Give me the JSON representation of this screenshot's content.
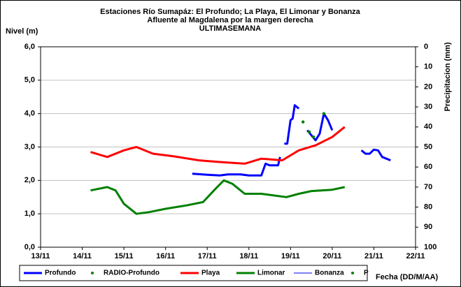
{
  "chart_data": {
    "type": "line",
    "title": "Estaciones Río Sumapáz: El Profundo; La Playa, El Limonar y Bonanza",
    "subtitle": "Afluente al Magdalena por la margen derecha",
    "subtitle2": "ULTIMASEMANA",
    "y_label": "Nivel (m)",
    "y2_label": "Precipitacion (mm)",
    "x_label": "Fecha (DD/M/AA)",
    "xlim": [
      13,
      22
    ],
    "xticks": [
      {
        "value": 13,
        "label": "13/11"
      },
      {
        "value": 14,
        "label": "14/11"
      },
      {
        "value": 15,
        "label": "15/11"
      },
      {
        "value": 16,
        "label": "16/11"
      },
      {
        "value": 17,
        "label": "17/11"
      },
      {
        "value": 18,
        "label": "18/11"
      },
      {
        "value": 19,
        "label": "19/11"
      },
      {
        "value": 20,
        "label": "20/11"
      },
      {
        "value": 21,
        "label": "21/11"
      },
      {
        "value": 22,
        "label": "22/11"
      }
    ],
    "ylim": [
      0,
      6
    ],
    "yticks": [
      {
        "value": 0,
        "label": "0,0"
      },
      {
        "value": 1,
        "label": "1,0"
      },
      {
        "value": 2,
        "label": "2,0"
      },
      {
        "value": 3,
        "label": "3,0"
      },
      {
        "value": 4,
        "label": "4,0"
      },
      {
        "value": 5,
        "label": "5,0"
      },
      {
        "value": 6,
        "label": "6,0"
      }
    ],
    "y2lim": [
      100,
      0
    ],
    "y2ticks": [
      0,
      10,
      20,
      30,
      40,
      50,
      60,
      70,
      80,
      90,
      100
    ],
    "grid": true,
    "series": [
      {
        "name": "Profundo",
        "color": "#0000ff",
        "width": 3,
        "marker": "line",
        "x": [
          16.64,
          17.0,
          17.3,
          17.5,
          17.8,
          18.0,
          18.3,
          18.4,
          18.5,
          18.7,
          18.75,
          18.8,
          18.85,
          18.92,
          19.0,
          19.05,
          19.1,
          19.2,
          19.25,
          19.4,
          19.6,
          19.7,
          19.8,
          19.9,
          20.0,
          20.4,
          20.7,
          20.8,
          20.9,
          21.0,
          21.1,
          21.2,
          21.4
        ],
        "values": [
          2.2,
          2.17,
          2.15,
          2.18,
          2.18,
          2.15,
          2.15,
          2.5,
          2.45,
          2.45,
          2.7,
          null,
          3.1,
          3.1,
          3.8,
          3.85,
          4.25,
          4.15,
          null,
          3.5,
          3.2,
          3.4,
          4.0,
          3.8,
          3.5,
          null,
          2.9,
          2.8,
          2.8,
          2.92,
          2.9,
          2.7,
          2.6
        ]
      },
      {
        "name": "RADIO-Profundo",
        "color": "#008000",
        "width": 3,
        "marker": "dot",
        "x": [
          19.3,
          19.45,
          19.55,
          19.8
        ],
        "values": [
          3.75,
          3.45,
          3.3,
          4.0
        ]
      },
      {
        "name": "Playa",
        "color": "#ff0000",
        "width": 3,
        "marker": "line",
        "x": [
          14.2,
          14.6,
          15.0,
          15.3,
          15.7,
          16.2,
          16.8,
          17.3,
          17.9,
          18.3,
          18.8,
          19.2,
          19.6,
          20.0,
          20.3
        ],
        "values": [
          2.85,
          2.7,
          2.9,
          3.0,
          2.8,
          2.72,
          2.6,
          2.55,
          2.5,
          2.65,
          2.6,
          2.9,
          3.05,
          3.3,
          3.6
        ]
      },
      {
        "name": "Limonar",
        "color": "#008000",
        "width": 3,
        "marker": "line",
        "x": [
          14.2,
          14.6,
          14.8,
          15.0,
          15.3,
          15.6,
          16.0,
          16.5,
          16.9,
          17.2,
          17.4,
          17.6,
          17.9,
          18.3,
          18.6,
          18.9,
          19.2,
          19.5,
          20.0,
          20.3
        ],
        "values": [
          1.7,
          1.8,
          1.7,
          1.3,
          1.0,
          1.05,
          1.15,
          1.25,
          1.35,
          1.75,
          2.0,
          1.9,
          1.6,
          1.6,
          1.55,
          1.5,
          1.6,
          1.68,
          1.72,
          1.8
        ]
      },
      {
        "name": "Bonanza",
        "color": "#0000ff",
        "width": 1,
        "marker": "line",
        "x": [],
        "values": []
      },
      {
        "name": "P",
        "color": "#008000",
        "width": 2,
        "marker": "dot",
        "x": [],
        "values": [],
        "axis": "y2"
      }
    ]
  }
}
